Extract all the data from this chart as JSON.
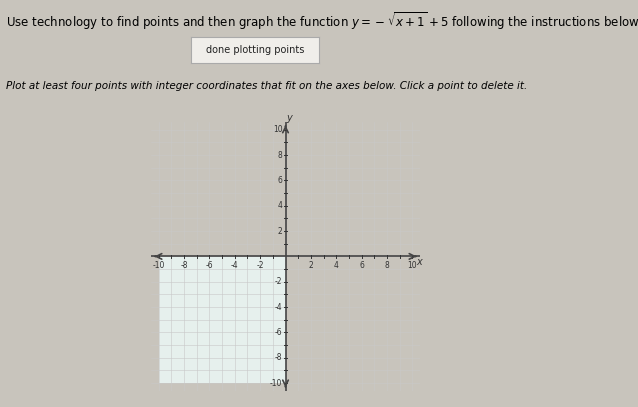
{
  "title_plain": "Use technology to find points and then graph the function ",
  "title_math": "y = -\\sqrt{x+1} + 5",
  "title_suffix": " following the instructions below.",
  "button_text": "done plotting points",
  "instruction_text": "Plot at least four points with integer coordinates that fit on the axes below. Click a point to delete it.",
  "xmin": -10,
  "xmax": 10,
  "ymin": -10,
  "ymax": 10,
  "grid_color": "#c8c8c8",
  "axis_color": "#444444",
  "plot_bg_color": "#f5f5f2",
  "lower_left_bg": "#e6f0ed",
  "fig_bg_color": "#c8c4bc",
  "title_fontsize": 8.5,
  "button_fontsize": 7,
  "instruction_fontsize": 7.5,
  "tick_fontsize": 5.5,
  "tick_color": "#333333"
}
